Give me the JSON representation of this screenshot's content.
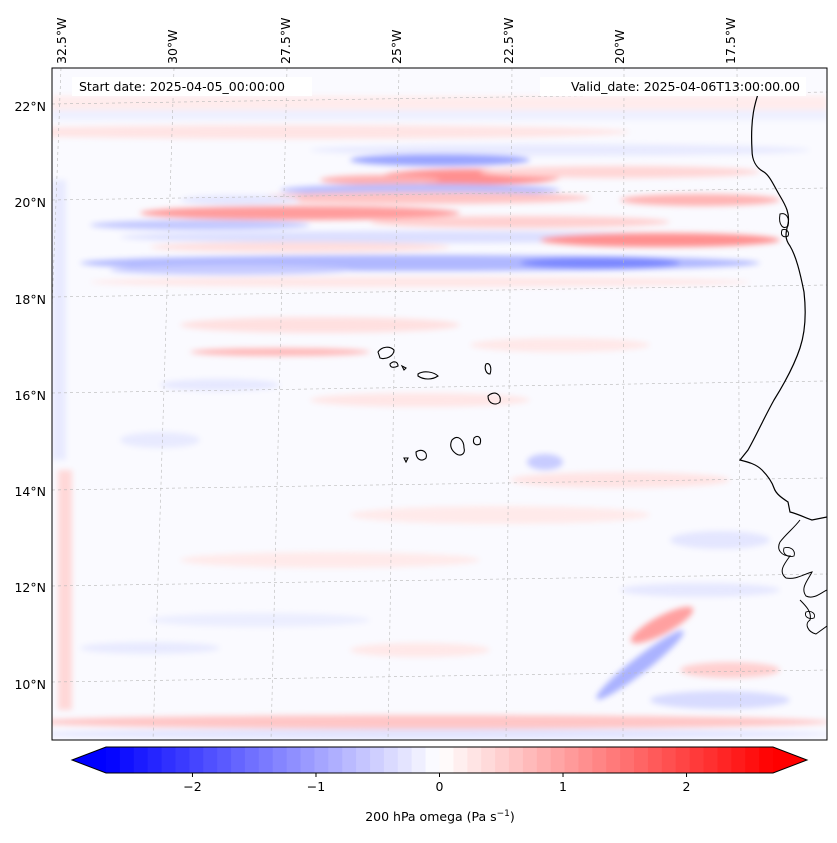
{
  "header": {
    "start_date": "Start date: 2025-04-05_00:00:00",
    "valid_date": "Valid_date: 2025-04-06T13:00:00.00"
  },
  "map": {
    "longitude_labels": [
      "32.5°W",
      "30°W",
      "27.5°W",
      "25°W",
      "22.5°W",
      "20°W",
      "17.5°W"
    ],
    "latitude_labels": [
      "22°N",
      "20°N",
      "18°N",
      "16°N",
      "14°N",
      "12°N",
      "10°N"
    ],
    "field": "200 hPa omega",
    "colors": {
      "negative": "#0000ff",
      "neutral": "#ffffff",
      "positive": "#ff0000",
      "coastline": "#000000",
      "gridline": "#b0b0b0"
    }
  },
  "colorbar": {
    "tick_labels": [
      "−2",
      "−1",
      "0",
      "1",
      "2"
    ],
    "range": [
      -2.7,
      2.7
    ],
    "label_main": "200 hPa omega (Pa s",
    "label_exp": "−1",
    "label_close": ")"
  }
}
